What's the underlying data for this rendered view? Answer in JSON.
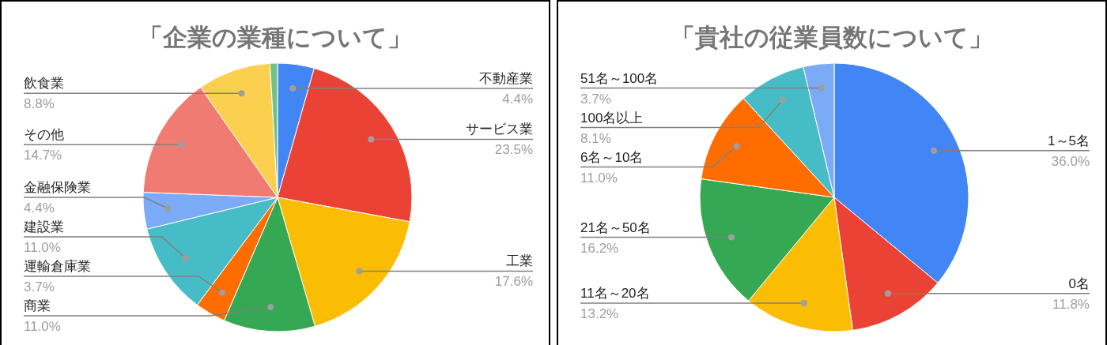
{
  "chart_data": [
    {
      "type": "pie",
      "title": "「企業の業種について」",
      "categories": [
        "不動産業",
        "サービス業",
        "工業",
        "商業",
        "運輸倉庫業",
        "建設業",
        "金融保険業",
        "その他",
        "飲食業",
        null
      ],
      "values": [
        4.4,
        23.5,
        17.6,
        11.0,
        3.7,
        11.0,
        4.4,
        14.7,
        8.8,
        0.9
      ],
      "colors": [
        "#4285f4",
        "#ea4335",
        "#fbbc04",
        "#34a853",
        "#ff6d01",
        "#46bdc6",
        "#7baaf7",
        "#f07b72",
        "#fcd04f",
        "#71c287"
      ],
      "value_labels": [
        "4.4%",
        "23.5%",
        "17.6%",
        "11.0%",
        "3.7%",
        "11.0%",
        "4.4%",
        "14.7%",
        "8.8%",
        null
      ]
    },
    {
      "type": "pie",
      "title": "「貴社の従業員数について」",
      "categories": [
        "1～5名",
        "0名",
        "11名～20名",
        "21名～50名",
        "6名～10名",
        "100名以上",
        "51名～100名"
      ],
      "values": [
        36.0,
        11.8,
        13.2,
        16.2,
        11.0,
        8.1,
        3.7
      ],
      "colors": [
        "#4285f4",
        "#ea4335",
        "#fbbc04",
        "#34a853",
        "#ff6d01",
        "#46bdc6",
        "#7baaf7"
      ],
      "value_labels": [
        "36.0%",
        "11.8%",
        "13.2%",
        "16.2%",
        "11.0%",
        "8.1%",
        "3.7%"
      ]
    }
  ]
}
